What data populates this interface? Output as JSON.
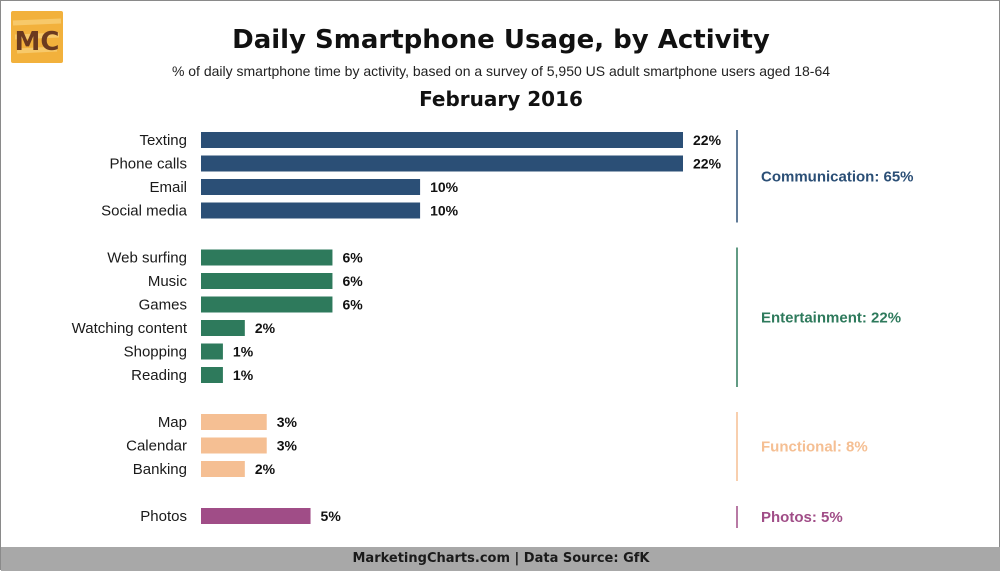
{
  "logo": {
    "text": "MC"
  },
  "title": "Daily Smartphone Usage, by Activity",
  "subtitle": "% of daily smartphone time by activity, based on a survey of 5,950 US adult smartphone users aged 18-64",
  "period": "February 2016",
  "footer": "MarketingCharts.com | Data Source: GfK",
  "chart_data": {
    "type": "bar",
    "orientation": "horizontal",
    "title": "Daily Smartphone Usage, by Activity",
    "unit": "%",
    "categories": [
      "Texting",
      "Phone calls",
      "Email",
      "Social media",
      "Web surfing",
      "Music",
      "Games",
      "Watching content",
      "Shopping",
      "Reading",
      "Map",
      "Calendar",
      "Banking",
      "Photos"
    ],
    "values": [
      22,
      22,
      10,
      10,
      6,
      6,
      6,
      2,
      1,
      1,
      3,
      3,
      2,
      5
    ],
    "value_labels": [
      "22%",
      "22%",
      "10%",
      "10%",
      "6%",
      "6%",
      "6%",
      "2%",
      "1%",
      "1%",
      "3%",
      "3%",
      "2%",
      "5%"
    ],
    "groups": [
      {
        "label": "Communication: 65%",
        "color": "#2b4f76",
        "items": [
          "Texting",
          "Phone calls",
          "Email",
          "Social media"
        ]
      },
      {
        "label": "Entertainment: 22%",
        "color": "#2e7a5c",
        "items": [
          "Web surfing",
          "Music",
          "Games",
          "Watching content",
          "Shopping",
          "Reading"
        ]
      },
      {
        "label": "Functional: 8%",
        "color": "#f5bf93",
        "items": [
          "Map",
          "Calendar",
          "Banking"
        ]
      },
      {
        "label": "Photos: 5%",
        "color": "#a04d87",
        "items": [
          "Photos"
        ]
      }
    ],
    "xlim": [
      0,
      22
    ],
    "grid": false,
    "legend": "right"
  }
}
